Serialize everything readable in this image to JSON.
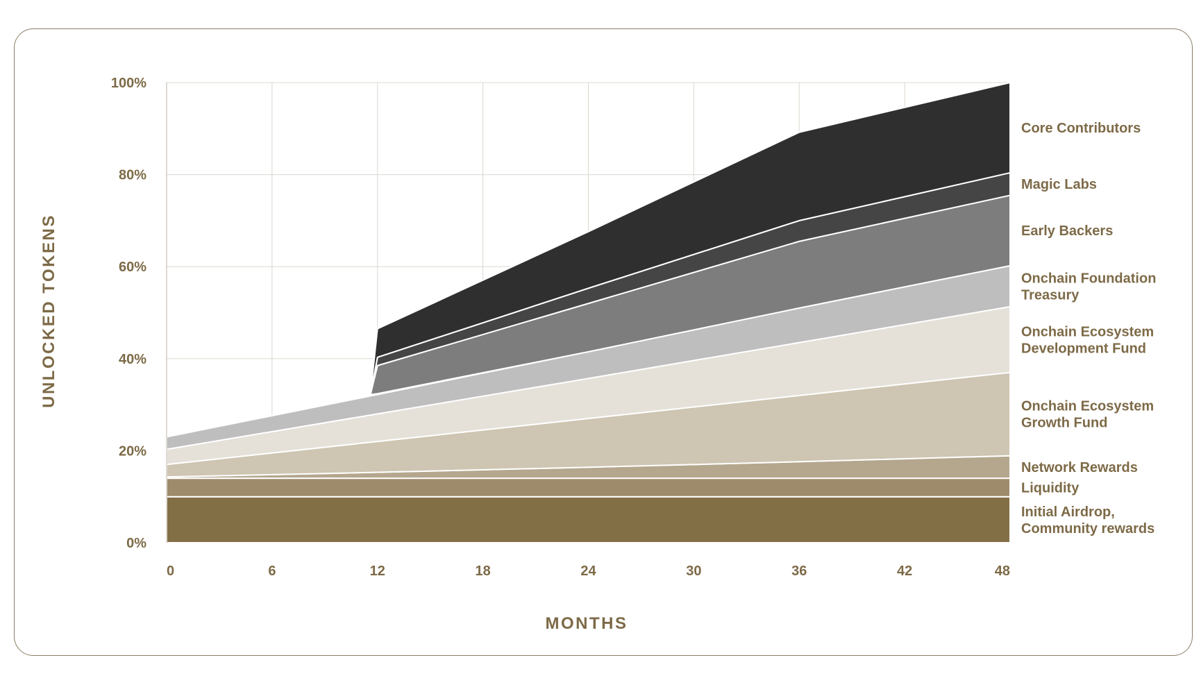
{
  "chart_data": {
    "type": "area",
    "stacked": true,
    "xlabel": "MONTHS",
    "ylabel": "UNLOCKED TOKENS",
    "x_ticks": [
      "0",
      "6",
      "12",
      "18",
      "24",
      "30",
      "36",
      "42",
      "48"
    ],
    "y_ticks": [
      "0%",
      "20%",
      "40%",
      "60%",
      "80%",
      "100%"
    ],
    "xlim": [
      0,
      48
    ],
    "ylim": [
      0,
      100
    ],
    "grid": true,
    "legend_position": "right",
    "series": [
      {
        "name": "Initial Airdrop, Community rewards",
        "label_lines": [
          "Initial Airdrop,",
          "Community rewards"
        ],
        "color": "#836f45",
        "points": [
          [
            0,
            0,
            10
          ],
          [
            48,
            0,
            10
          ]
        ]
      },
      {
        "name": "Liquidity",
        "label_lines": [
          "Liquidity"
        ],
        "color": "#9e8b6b",
        "points": [
          [
            0,
            10,
            14
          ],
          [
            48,
            10,
            14
          ]
        ]
      },
      {
        "name": "Network Rewards",
        "label_lines": [
          "Network Rewards"
        ],
        "color": "#b4a78e",
        "points": [
          [
            0,
            14,
            14.3
          ],
          [
            12,
            14,
            15.3
          ],
          [
            24,
            14,
            16.4
          ],
          [
            36,
            14,
            17.6
          ],
          [
            48,
            14,
            18.9
          ]
        ]
      },
      {
        "name": "Onchain Ecosystem Growth Fund",
        "label_lines": [
          "Onchain Ecosystem",
          "Growth Fund"
        ],
        "color": "#cec5b2",
        "points": [
          [
            0,
            14.3,
            17
          ],
          [
            12,
            15.3,
            22
          ],
          [
            24,
            16.4,
            27
          ],
          [
            36,
            17.6,
            32
          ],
          [
            48,
            18.9,
            37
          ]
        ]
      },
      {
        "name": "Onchain Ecosystem Development Fund",
        "label_lines": [
          "Onchain Ecosystem",
          "Development Fund"
        ],
        "color": "#e5e1d9",
        "points": [
          [
            0,
            17,
            20.3
          ],
          [
            12,
            22,
            28
          ],
          [
            24,
            27,
            35.7
          ],
          [
            36,
            32,
            43.5
          ],
          [
            48,
            37,
            51.3
          ]
        ]
      },
      {
        "name": "Onchain Foundation Treasury",
        "label_lines": [
          "Onchain Foundation",
          "Treasury"
        ],
        "color": "#bebebe",
        "points": [
          [
            0,
            20.3,
            23
          ],
          [
            12,
            28,
            32.2
          ],
          [
            24,
            35.7,
            41.5
          ],
          [
            36,
            43.5,
            51
          ],
          [
            48,
            51.3,
            60.2
          ]
        ]
      },
      {
        "name": "Early Backers",
        "label_lines": [
          "Early Backers"
        ],
        "color": "#7d7d7d",
        "points": [
          [
            11.6,
            32.2,
            32.2
          ],
          [
            12,
            32.4,
            38.5
          ],
          [
            24,
            41.5,
            52
          ],
          [
            36,
            51,
            65.5
          ],
          [
            48,
            60.2,
            75.5
          ]
        ]
      },
      {
        "name": "Magic Labs",
        "label_lines": [
          "Magic Labs"
        ],
        "color": "#454545",
        "points": [
          [
            11.6,
            32.2,
            32.2
          ],
          [
            12,
            38.5,
            40.3
          ],
          [
            24,
            52,
            55.3
          ],
          [
            36,
            65.5,
            70
          ],
          [
            48,
            75.5,
            80.4
          ]
        ]
      },
      {
        "name": "Core Contributors",
        "label_lines": [
          "Core Contributors"
        ],
        "color": "#2f2f2f",
        "points": [
          [
            11.6,
            32.2,
            32.2
          ],
          [
            12,
            40.3,
            46.5
          ],
          [
            24,
            55.3,
            67.6
          ],
          [
            36,
            70,
            89.2
          ],
          [
            48,
            80.4,
            100
          ]
        ]
      }
    ]
  }
}
